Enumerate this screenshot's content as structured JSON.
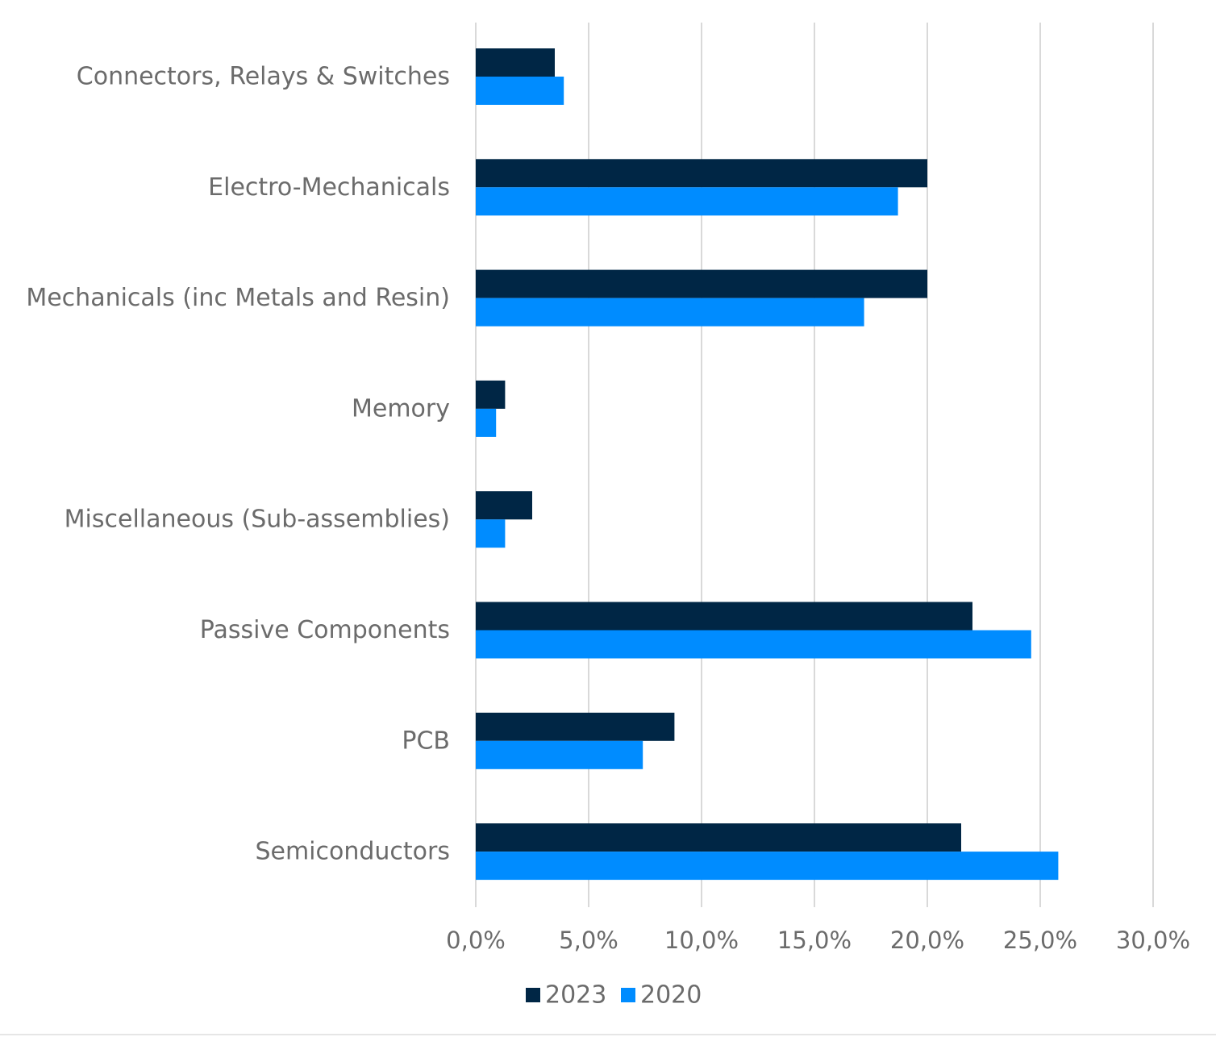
{
  "chart_data": {
    "type": "bar",
    "orientation": "horizontal",
    "categories": [
      "Connectors, Relays & Switches",
      "Electro-Mechanicals",
      "Mechanicals (inc Metals and Resin)",
      "Memory",
      "Miscellaneous (Sub-assemblies)",
      "Passive Components",
      "PCB",
      "Semiconductors"
    ],
    "series": [
      {
        "name": "2023",
        "color": "#002645",
        "values": [
          3.5,
          20.0,
          20.0,
          1.3,
          2.5,
          22.0,
          8.8,
          21.5
        ]
      },
      {
        "name": "2020",
        "color": "#008cff",
        "values": [
          3.9,
          18.7,
          17.2,
          0.9,
          1.3,
          24.6,
          7.4,
          25.8
        ]
      }
    ],
    "x_ticks": [
      "0,0%",
      "5,0%",
      "10,0%",
      "15,0%",
      "20,0%",
      "25,0%",
      "30,0%"
    ],
    "xlim": [
      0,
      30
    ],
    "grid": "vertical",
    "legend_position": "bottom-center",
    "title": "",
    "xlabel": "",
    "ylabel": ""
  }
}
